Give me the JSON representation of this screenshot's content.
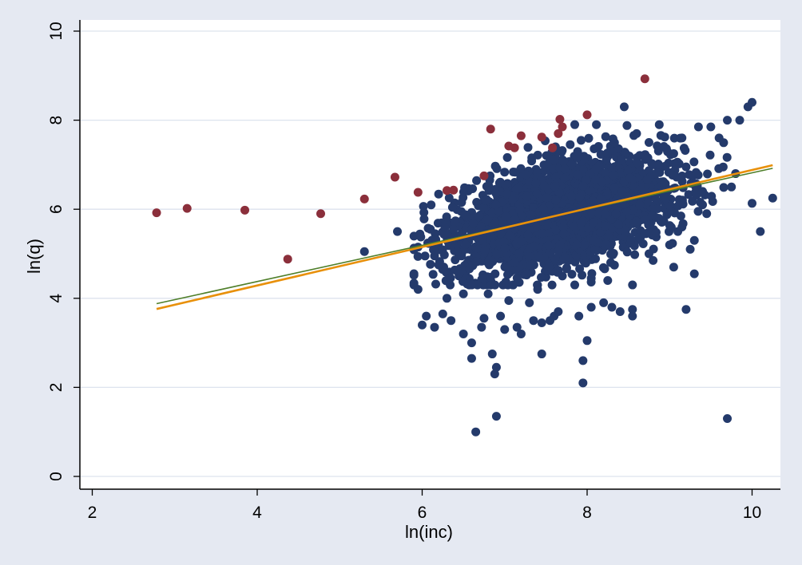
{
  "chart_data": {
    "type": "scatter",
    "xlabel": "ln(inc)",
    "ylabel": "ln(q)",
    "xlim": [
      1.8,
      10.45
    ],
    "ylim": [
      -0.3,
      10.5
    ],
    "x_ticks": [
      2,
      4,
      6,
      8,
      10
    ],
    "y_ticks": [
      0,
      2,
      4,
      6,
      8,
      10
    ],
    "x_tick_labels": [
      "2",
      "4",
      "6",
      "8",
      "10"
    ],
    "y_tick_labels": [
      "0",
      "2",
      "4",
      "6",
      "8",
      "10"
    ],
    "grid": "horizontal",
    "colors": {
      "background": "#e5e9f2",
      "plot_area": "#ffffff",
      "grid": "#dde3ee",
      "main_points": "#243a6b",
      "highlighted_points": "#8b2f3b",
      "fit_line_green": "#4f7f2a",
      "fit_line_orange": "#e8900a"
    },
    "series": [
      {
        "role": "main",
        "cluster": {
          "center_x": 7.7,
          "center_y": 5.9,
          "count": 3200
        },
        "outliers": [
          [
            5.3,
            5.05
          ],
          [
            5.7,
            5.5
          ],
          [
            5.95,
            5.15
          ],
          [
            5.95,
            4.2
          ],
          [
            6.0,
            3.4
          ],
          [
            6.05,
            3.6
          ],
          [
            6.15,
            3.35
          ],
          [
            6.25,
            3.65
          ],
          [
            6.3,
            4.0
          ],
          [
            6.35,
            3.5
          ],
          [
            6.5,
            3.2
          ],
          [
            6.6,
            2.65
          ],
          [
            6.6,
            3.0
          ],
          [
            6.65,
            1.0
          ],
          [
            6.72,
            3.35
          ],
          [
            6.75,
            3.55
          ],
          [
            6.8,
            4.1
          ],
          [
            6.85,
            2.75
          ],
          [
            6.88,
            2.3
          ],
          [
            6.9,
            1.35
          ],
          [
            6.9,
            2.45
          ],
          [
            6.95,
            3.6
          ],
          [
            7.0,
            3.3
          ],
          [
            7.05,
            3.95
          ],
          [
            7.15,
            3.35
          ],
          [
            7.2,
            3.2
          ],
          [
            7.3,
            3.9
          ],
          [
            7.35,
            3.5
          ],
          [
            7.45,
            3.45
          ],
          [
            7.45,
            2.75
          ],
          [
            7.55,
            3.5
          ],
          [
            7.6,
            3.6
          ],
          [
            7.65,
            3.7
          ],
          [
            7.85,
            4.3
          ],
          [
            7.9,
            3.6
          ],
          [
            7.95,
            2.1
          ],
          [
            7.95,
            2.6
          ],
          [
            8.0,
            3.05
          ],
          [
            8.05,
            3.8
          ],
          [
            8.2,
            3.9
          ],
          [
            8.3,
            3.8
          ],
          [
            8.4,
            3.7
          ],
          [
            8.55,
            3.75
          ],
          [
            8.55,
            3.6
          ],
          [
            8.55,
            4.3
          ],
          [
            8.75,
            5.0
          ],
          [
            9.0,
            5.2
          ],
          [
            9.05,
            4.7
          ],
          [
            9.1,
            5.5
          ],
          [
            9.2,
            3.75
          ],
          [
            9.3,
            5.3
          ],
          [
            9.3,
            4.55
          ],
          [
            9.4,
            6.1
          ],
          [
            9.45,
            5.9
          ],
          [
            9.65,
            6.95
          ],
          [
            9.7,
            8.0
          ],
          [
            9.75,
            6.5
          ],
          [
            9.8,
            6.8
          ],
          [
            9.85,
            8.0
          ],
          [
            9.95,
            8.3
          ],
          [
            10.0,
            8.4
          ],
          [
            10.1,
            5.5
          ],
          [
            10.25,
            6.25
          ],
          [
            9.7,
            1.3
          ],
          [
            9.6,
            7.6
          ],
          [
            9.5,
            7.85
          ],
          [
            9.35,
            7.85
          ],
          [
            9.15,
            7.6
          ],
          [
            8.8,
            7.0
          ],
          [
            8.75,
            7.5
          ],
          [
            9.05,
            7.25
          ],
          [
            7.85,
            7.9
          ],
          [
            8.45,
            8.3
          ],
          [
            8.6,
            7.7
          ],
          [
            8.7,
            5.45
          ],
          [
            8.9,
            5.75
          ],
          [
            9.15,
            5.6
          ],
          [
            9.25,
            5.1
          ],
          [
            9.4,
            6.4
          ],
          [
            8.8,
            4.85
          ],
          [
            6.1,
            5.55
          ],
          [
            6.15,
            4.95
          ],
          [
            6.2,
            4.75
          ],
          [
            6.5,
            4.1
          ],
          [
            6.6,
            4.3
          ],
          [
            7.1,
            4.3
          ],
          [
            7.4,
            4.2
          ],
          [
            7.7,
            4.5
          ],
          [
            8.05,
            4.45
          ],
          [
            8.25,
            4.4
          ]
        ]
      },
      {
        "role": "highlighted",
        "points": [
          [
            2.78,
            5.92
          ],
          [
            3.15,
            6.02
          ],
          [
            3.85,
            5.98
          ],
          [
            4.37,
            4.88
          ],
          [
            4.77,
            5.9
          ],
          [
            5.3,
            6.23
          ],
          [
            5.67,
            6.72
          ],
          [
            5.95,
            6.38
          ],
          [
            6.3,
            6.42
          ],
          [
            6.38,
            6.43
          ],
          [
            6.75,
            6.75
          ],
          [
            6.83,
            7.8
          ],
          [
            7.05,
            7.42
          ],
          [
            7.12,
            7.38
          ],
          [
            7.2,
            7.65
          ],
          [
            7.45,
            7.62
          ],
          [
            7.58,
            7.38
          ],
          [
            7.65,
            7.7
          ],
          [
            7.67,
            8.02
          ],
          [
            7.7,
            7.85
          ],
          [
            8.0,
            8.12
          ],
          [
            8.7,
            8.93
          ]
        ]
      }
    ],
    "fit_lines": [
      {
        "role": "green",
        "x": [
          2.78,
          10.25
        ],
        "y": [
          3.88,
          6.92
        ]
      },
      {
        "role": "orange",
        "x": [
          2.78,
          10.25
        ],
        "y": [
          3.76,
          6.99
        ]
      }
    ]
  }
}
